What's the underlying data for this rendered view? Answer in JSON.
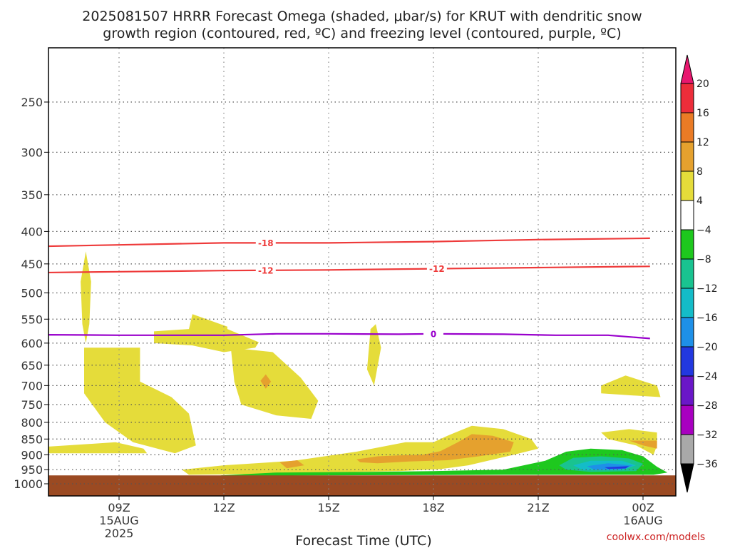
{
  "title_line1": "2025081507 HRRR Forecast Omega (shaded, μbar/s) for KRUT with dendritic snow",
  "title_line2": "growth region (contoured, red, ºC) and freezing level (contoured, purple, ºC)",
  "xlabel": "Forecast Time (UTC)",
  "credit": "coolwx.com/models",
  "chart_data": {
    "type": "heatmap",
    "x_axis": {
      "unit": "hours from 2025-08-15 06Z",
      "range": [
        0.0,
        18.2
      ],
      "ticks": [
        {
          "x": 3,
          "label": "09Z",
          "sub1": "15AUG",
          "sub2": "2025"
        },
        {
          "x": 6,
          "label": "12Z",
          "sub1": "",
          "sub2": ""
        },
        {
          "x": 9,
          "label": "15Z",
          "sub1": "",
          "sub2": ""
        },
        {
          "x": 12,
          "label": "18Z",
          "sub1": "",
          "sub2": ""
        },
        {
          "x": 15,
          "label": "21Z",
          "sub1": "",
          "sub2": ""
        },
        {
          "x": 18,
          "label": "00Z",
          "sub1": "16AUG",
          "sub2": ""
        }
      ]
    },
    "y_axis": {
      "unit": "hPa",
      "scale": "log",
      "range": [
        1050,
        190
      ],
      "ticks": [
        250,
        300,
        350,
        400,
        450,
        500,
        550,
        600,
        650,
        700,
        750,
        800,
        850,
        900,
        950,
        1000
      ]
    },
    "ground_top_hpa": 970,
    "omega_shading": [
      {
        "level": "4 to 8",
        "points": [
          [
            1.9,
            480
          ],
          [
            2.05,
            430
          ],
          [
            2.2,
            480
          ],
          [
            2.15,
            560
          ],
          [
            2.05,
            600
          ],
          [
            1.95,
            560
          ]
        ]
      },
      {
        "level": "4 to 8",
        "points": [
          [
            4.0,
            575
          ],
          [
            5.0,
            570
          ],
          [
            5.1,
            540
          ],
          [
            6.1,
            565
          ],
          [
            6.1,
            570
          ],
          [
            7.0,
            598
          ],
          [
            6.9,
            610
          ],
          [
            6.0,
            620
          ],
          [
            5.1,
            605
          ],
          [
            4.0,
            600
          ]
        ]
      },
      {
        "level": "4 to 8",
        "points": [
          [
            2.0,
            610
          ],
          [
            3.6,
            610
          ],
          [
            3.6,
            690
          ],
          [
            4.5,
            730
          ],
          [
            5.0,
            775
          ],
          [
            5.2,
            870
          ],
          [
            4.6,
            895
          ],
          [
            3.4,
            860
          ],
          [
            2.6,
            800
          ],
          [
            2.0,
            720
          ]
        ]
      },
      {
        "level": "4 to 8",
        "points": [
          [
            6.2,
            610
          ],
          [
            7.4,
            620
          ],
          [
            8.2,
            680
          ],
          [
            8.7,
            740
          ],
          [
            8.5,
            790
          ],
          [
            7.5,
            780
          ],
          [
            6.5,
            750
          ],
          [
            6.3,
            690
          ]
        ]
      },
      {
        "level": "4 to 8",
        "points": [
          [
            10.2,
            570
          ],
          [
            10.35,
            560
          ],
          [
            10.5,
            610
          ],
          [
            10.3,
            700
          ],
          [
            10.1,
            660
          ]
        ]
      },
      {
        "level": "4 to 8",
        "points": [
          [
            0.0,
            880
          ],
          [
            1.5,
            870
          ],
          [
            2.9,
            860
          ],
          [
            3.7,
            880
          ],
          [
            3.8,
            895
          ],
          [
            2.4,
            895
          ],
          [
            1.0,
            895
          ],
          [
            0.0,
            890
          ]
        ]
      },
      {
        "level": "4 to 8",
        "points": [
          [
            0.0,
            930
          ],
          [
            0.4,
            955
          ],
          [
            0.0,
            975
          ]
        ]
      },
      {
        "level": "4 to 8",
        "points": [
          [
            16.8,
            700
          ],
          [
            17.5,
            675
          ],
          [
            18.4,
            700
          ],
          [
            18.5,
            730
          ],
          [
            17.6,
            725
          ],
          [
            16.8,
            720
          ]
        ]
      },
      {
        "level": "4 to 8",
        "points": [
          [
            16.8,
            830
          ],
          [
            17.6,
            820
          ],
          [
            18.4,
            830
          ],
          [
            18.4,
            870
          ],
          [
            18.3,
            900
          ],
          [
            17.8,
            870
          ],
          [
            17.0,
            850
          ]
        ]
      },
      {
        "level": "4 to 8",
        "points": [
          [
            4.8,
            950
          ],
          [
            6.0,
            935
          ],
          [
            8.0,
            920
          ],
          [
            9.8,
            890
          ],
          [
            11.2,
            860
          ],
          [
            12.0,
            860
          ],
          [
            12.4,
            840
          ],
          [
            13.1,
            810
          ],
          [
            14.0,
            820
          ],
          [
            14.8,
            850
          ],
          [
            15.0,
            880
          ],
          [
            14.3,
            900
          ],
          [
            13.0,
            935
          ],
          [
            12.2,
            948
          ],
          [
            11.0,
            955
          ],
          [
            9.0,
            960
          ],
          [
            7.0,
            965
          ],
          [
            5.0,
            968
          ]
        ]
      },
      {
        "level": "8 to 12",
        "points": [
          [
            9.8,
            915
          ],
          [
            10.4,
            905
          ],
          [
            11.0,
            902
          ],
          [
            11.7,
            900
          ],
          [
            12.2,
            888
          ],
          [
            12.7,
            860
          ],
          [
            13.1,
            835
          ],
          [
            13.7,
            840
          ],
          [
            14.3,
            860
          ],
          [
            14.2,
            890
          ],
          [
            13.3,
            905
          ],
          [
            12.4,
            918
          ],
          [
            11.3,
            922
          ],
          [
            10.4,
            928
          ],
          [
            9.9,
            925
          ]
        ]
      },
      {
        "level": "8 to 12",
        "points": [
          [
            7.6,
            925
          ],
          [
            8.1,
            918
          ],
          [
            8.3,
            935
          ],
          [
            7.8,
            945
          ]
        ]
      },
      {
        "level": "8 to 12",
        "points": [
          [
            7.05,
            688
          ],
          [
            7.2,
            672
          ],
          [
            7.35,
            690
          ],
          [
            7.2,
            708
          ]
        ]
      },
      {
        "level": "8 to 12",
        "points": [
          [
            17.6,
            855
          ],
          [
            18.4,
            855
          ],
          [
            18.4,
            880
          ],
          [
            18.0,
            870
          ]
        ]
      },
      {
        "level": "-8 to -4",
        "points": [
          [
            5.9,
            970
          ],
          [
            7.5,
            960
          ],
          [
            10.0,
            958
          ],
          [
            12.0,
            955
          ],
          [
            14.0,
            950
          ],
          [
            15.2,
            920
          ],
          [
            15.8,
            890
          ],
          [
            16.5,
            880
          ],
          [
            17.4,
            885
          ],
          [
            18.0,
            905
          ],
          [
            18.4,
            940
          ],
          [
            18.7,
            960
          ],
          [
            18.3,
            968
          ],
          [
            14.0,
            968
          ],
          [
            9.0,
            970
          ],
          [
            6.0,
            972
          ]
        ]
      },
      {
        "level": "-12 to -8",
        "points": [
          [
            15.6,
            935
          ],
          [
            16.0,
            910
          ],
          [
            16.8,
            905
          ],
          [
            17.6,
            912
          ],
          [
            18.0,
            930
          ],
          [
            17.8,
            955
          ],
          [
            16.5,
            958
          ],
          [
            15.8,
            950
          ]
        ]
      },
      {
        "level": "-16 to -12",
        "points": [
          [
            16.0,
            935
          ],
          [
            16.5,
            920
          ],
          [
            17.4,
            920
          ],
          [
            17.8,
            935
          ],
          [
            17.4,
            952
          ],
          [
            16.3,
            952
          ]
        ]
      },
      {
        "level": "-20 to -16",
        "points": [
          [
            16.4,
            938
          ],
          [
            17.0,
            928
          ],
          [
            17.7,
            936
          ],
          [
            17.3,
            950
          ],
          [
            16.6,
            950
          ]
        ]
      },
      {
        "level": "-24 to -20",
        "points": [
          [
            16.9,
            942
          ],
          [
            17.6,
            938
          ],
          [
            17.5,
            946
          ],
          [
            17.0,
            947
          ]
        ]
      }
    ],
    "contours": [
      {
        "name": "-18",
        "color": "#ee3a3a",
        "points": [
          [
            0.0,
            423
          ],
          [
            3.0,
            420
          ],
          [
            6.0,
            417
          ],
          [
            9.0,
            417
          ],
          [
            12.0,
            415
          ],
          [
            15.0,
            412
          ],
          [
            18.2,
            410
          ]
        ],
        "label_x": 7.2
      },
      {
        "name": "-12",
        "color": "#ee3a3a",
        "points": [
          [
            0.0,
            465
          ],
          [
            3.0,
            463
          ],
          [
            6.0,
            461
          ],
          [
            9.0,
            460
          ],
          [
            12.0,
            458
          ],
          [
            15.0,
            456
          ],
          [
            18.2,
            454
          ]
        ],
        "label_x": [
          7.2,
          12.1
        ]
      },
      {
        "name": "0",
        "color": "#9900cc",
        "points": [
          [
            0.0,
            590
          ],
          [
            1.0,
            582
          ],
          [
            3.0,
            583
          ],
          [
            6.0,
            583
          ],
          [
            7.5,
            580
          ],
          [
            9.0,
            580
          ],
          [
            11.0,
            581
          ],
          [
            12.0,
            580
          ],
          [
            14.0,
            581
          ],
          [
            15.5,
            583
          ],
          [
            17.0,
            583
          ],
          [
            18.2,
            590
          ]
        ],
        "label_x": 12.0
      }
    ],
    "colorbar": {
      "unit": "μbar/s",
      "levels": [
        "20",
        "16",
        "12",
        "8",
        "4",
        "−4",
        "−8",
        "−12",
        "−16",
        "−20",
        "−24",
        "−28",
        "−32",
        "−36"
      ],
      "colors": {
        ">20": "#e8176f",
        "16 to 20": "#ec2d3a",
        "12 to 16": "#ea7b25",
        "8 to 12": "#e5a12e",
        "4 to 8": "#e5dc3a",
        "-4 to 4": "#ffffff",
        "-8 to -4": "#1ec81e",
        "-12 to -8": "#19c390",
        "-16 to -12": "#14bcc8",
        "-20 to -16": "#1e90e8",
        "-24 to -20": "#2238e0",
        "-28 to -24": "#6a17c8",
        "-32 to -28": "#a800c0",
        "-36 to -32": "#a9a9a9",
        "<-36": "#000000"
      }
    },
    "ground_color": "#9b4a22",
    "grid": "dotted"
  }
}
